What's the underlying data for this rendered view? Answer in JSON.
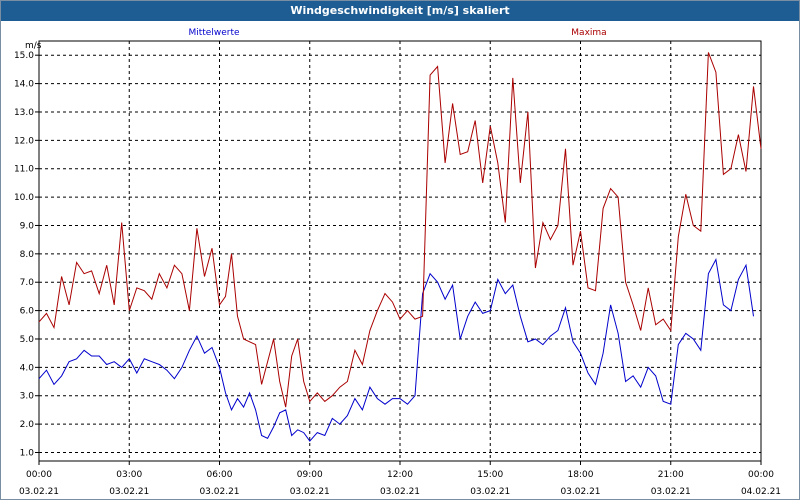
{
  "window": {
    "title": "Windgeschwindigkeit [m/s] skaliert"
  },
  "chart_data": {
    "type": "line",
    "title": "Windgeschwindigkeit [m/s] skaliert",
    "ylabel": "m/s",
    "ylim": [
      0.7,
      15.5
    ],
    "y_ticks": [
      "1.0",
      "2.0",
      "3.0",
      "4.0",
      "5.0",
      "6.0",
      "7.0",
      "8.0",
      "9.0",
      "10.0",
      "11.0",
      "12.0",
      "13.0",
      "14.0",
      "15.0"
    ],
    "xlim": [
      0,
      24
    ],
    "x_ticks": [
      {
        "time": "00:00",
        "date": "03.02.21"
      },
      {
        "time": "03:00",
        "date": "03.02.21"
      },
      {
        "time": "06:00",
        "date": "03.02.21"
      },
      {
        "time": "09:00",
        "date": "03.02.21"
      },
      {
        "time": "12:00",
        "date": "03.02.21"
      },
      {
        "time": "15:00",
        "date": "03.02.21"
      },
      {
        "time": "18:00",
        "date": "03.02.21"
      },
      {
        "time": "21:00",
        "date": "03.02.21"
      },
      {
        "time": "00:00",
        "date": "04.02.21"
      }
    ],
    "grid": true,
    "series": [
      {
        "name": "Mittelwerte",
        "color": "#0000cc",
        "points": [
          [
            0,
            3.6
          ],
          [
            0.25,
            3.9
          ],
          [
            0.5,
            3.4
          ],
          [
            0.75,
            3.7
          ],
          [
            1,
            4.2
          ],
          [
            1.25,
            4.3
          ],
          [
            1.5,
            4.6
          ],
          [
            1.75,
            4.4
          ],
          [
            2,
            4.4
          ],
          [
            2.25,
            4.1
          ],
          [
            2.5,
            4.2
          ],
          [
            2.75,
            4.0
          ],
          [
            3,
            4.3
          ],
          [
            3.25,
            3.8
          ],
          [
            3.5,
            4.3
          ],
          [
            3.75,
            4.2
          ],
          [
            4,
            4.1
          ],
          [
            4.25,
            3.9
          ],
          [
            4.5,
            3.6
          ],
          [
            4.75,
            4.0
          ],
          [
            5,
            4.6
          ],
          [
            5.25,
            5.1
          ],
          [
            5.5,
            4.5
          ],
          [
            5.75,
            4.7
          ],
          [
            6,
            4.0
          ],
          [
            6.2,
            3.1
          ],
          [
            6.4,
            2.5
          ],
          [
            6.6,
            2.9
          ],
          [
            6.8,
            2.6
          ],
          [
            7,
            3.1
          ],
          [
            7.2,
            2.5
          ],
          [
            7.4,
            1.6
          ],
          [
            7.6,
            1.5
          ],
          [
            7.8,
            1.9
          ],
          [
            8,
            2.4
          ],
          [
            8.2,
            2.5
          ],
          [
            8.4,
            1.6
          ],
          [
            8.6,
            1.8
          ],
          [
            8.8,
            1.7
          ],
          [
            9,
            1.4
          ],
          [
            9.25,
            1.7
          ],
          [
            9.5,
            1.6
          ],
          [
            9.75,
            2.2
          ],
          [
            10,
            2.0
          ],
          [
            10.25,
            2.3
          ],
          [
            10.5,
            2.9
          ],
          [
            10.75,
            2.5
          ],
          [
            11,
            3.3
          ],
          [
            11.25,
            2.9
          ],
          [
            11.5,
            2.7
          ],
          [
            11.75,
            2.9
          ],
          [
            12,
            2.9
          ],
          [
            12.25,
            2.7
          ],
          [
            12.5,
            3.0
          ],
          [
            12.75,
            6.6
          ],
          [
            13,
            7.3
          ],
          [
            13.25,
            7.0
          ],
          [
            13.5,
            6.4
          ],
          [
            13.75,
            6.9
          ],
          [
            14,
            5.0
          ],
          [
            14.25,
            5.8
          ],
          [
            14.5,
            6.3
          ],
          [
            14.75,
            5.9
          ],
          [
            15,
            6.0
          ],
          [
            15.25,
            7.1
          ],
          [
            15.5,
            6.6
          ],
          [
            15.75,
            6.9
          ],
          [
            16,
            5.8
          ],
          [
            16.25,
            4.9
          ],
          [
            16.5,
            5.0
          ],
          [
            16.75,
            4.8
          ],
          [
            17,
            5.1
          ],
          [
            17.25,
            5.3
          ],
          [
            17.5,
            6.1
          ],
          [
            17.75,
            4.9
          ],
          [
            18,
            4.5
          ],
          [
            18.25,
            3.8
          ],
          [
            18.5,
            3.4
          ],
          [
            18.75,
            4.5
          ],
          [
            19,
            6.2
          ],
          [
            19.25,
            5.2
          ],
          [
            19.5,
            3.5
          ],
          [
            19.75,
            3.7
          ],
          [
            20,
            3.3
          ],
          [
            20.25,
            4.0
          ],
          [
            20.5,
            3.7
          ],
          [
            20.75,
            2.8
          ],
          [
            21,
            2.7
          ],
          [
            21.25,
            4.8
          ],
          [
            21.5,
            5.2
          ],
          [
            21.75,
            5.0
          ],
          [
            22,
            4.6
          ],
          [
            22.25,
            7.3
          ],
          [
            22.5,
            7.8
          ],
          [
            22.75,
            6.2
          ],
          [
            23,
            6.0
          ],
          [
            23.25,
            7.1
          ],
          [
            23.5,
            7.6
          ],
          [
            23.75,
            5.8
          ]
        ]
      },
      {
        "name": "Maxima",
        "color": "#aa0000",
        "points": [
          [
            0,
            5.6
          ],
          [
            0.25,
            5.9
          ],
          [
            0.5,
            5.4
          ],
          [
            0.75,
            7.2
          ],
          [
            1,
            6.2
          ],
          [
            1.25,
            7.7
          ],
          [
            1.5,
            7.3
          ],
          [
            1.75,
            7.4
          ],
          [
            2,
            6.6
          ],
          [
            2.25,
            7.6
          ],
          [
            2.5,
            6.2
          ],
          [
            2.75,
            9.1
          ],
          [
            3,
            6.0
          ],
          [
            3.25,
            6.8
          ],
          [
            3.5,
            6.7
          ],
          [
            3.75,
            6.4
          ],
          [
            4,
            7.3
          ],
          [
            4.25,
            6.8
          ],
          [
            4.5,
            7.6
          ],
          [
            4.75,
            7.3
          ],
          [
            5,
            6.0
          ],
          [
            5.25,
            8.9
          ],
          [
            5.5,
            7.2
          ],
          [
            5.75,
            8.2
          ],
          [
            6,
            6.2
          ],
          [
            6.2,
            6.5
          ],
          [
            6.4,
            8.0
          ],
          [
            6.6,
            5.8
          ],
          [
            6.8,
            5.0
          ],
          [
            7,
            4.9
          ],
          [
            7.2,
            4.8
          ],
          [
            7.4,
            3.4
          ],
          [
            7.6,
            4.2
          ],
          [
            7.8,
            5.0
          ],
          [
            8,
            3.5
          ],
          [
            8.2,
            2.6
          ],
          [
            8.4,
            4.4
          ],
          [
            8.6,
            5.0
          ],
          [
            8.8,
            3.5
          ],
          [
            9,
            2.8
          ],
          [
            9.25,
            3.1
          ],
          [
            9.5,
            2.8
          ],
          [
            9.75,
            3.0
          ],
          [
            10,
            3.3
          ],
          [
            10.25,
            3.5
          ],
          [
            10.5,
            4.6
          ],
          [
            10.75,
            4.1
          ],
          [
            11,
            5.3
          ],
          [
            11.25,
            6.0
          ],
          [
            11.5,
            6.6
          ],
          [
            11.75,
            6.3
          ],
          [
            12,
            5.7
          ],
          [
            12.25,
            6.0
          ],
          [
            12.5,
            5.7
          ],
          [
            12.75,
            5.8
          ],
          [
            13,
            14.3
          ],
          [
            13.25,
            14.6
          ],
          [
            13.5,
            11.2
          ],
          [
            13.75,
            13.3
          ],
          [
            14,
            11.5
          ],
          [
            14.25,
            11.6
          ],
          [
            14.5,
            12.7
          ],
          [
            14.75,
            10.5
          ],
          [
            15,
            12.5
          ],
          [
            15.25,
            11.2
          ],
          [
            15.5,
            9.1
          ],
          [
            15.75,
            14.2
          ],
          [
            16,
            10.5
          ],
          [
            16.25,
            13.0
          ],
          [
            16.5,
            7.5
          ],
          [
            16.75,
            9.1
          ],
          [
            17,
            8.5
          ],
          [
            17.25,
            9.0
          ],
          [
            17.5,
            11.7
          ],
          [
            17.75,
            7.6
          ],
          [
            18,
            8.8
          ],
          [
            18.25,
            6.8
          ],
          [
            18.5,
            6.7
          ],
          [
            18.75,
            9.6
          ],
          [
            19,
            10.3
          ],
          [
            19.25,
            10.0
          ],
          [
            19.5,
            7.0
          ],
          [
            19.75,
            6.2
          ],
          [
            20,
            5.3
          ],
          [
            20.25,
            6.8
          ],
          [
            20.5,
            5.5
          ],
          [
            20.75,
            5.7
          ],
          [
            21,
            5.3
          ],
          [
            21.25,
            8.6
          ],
          [
            21.5,
            10.1
          ],
          [
            21.75,
            9.0
          ],
          [
            22,
            8.8
          ],
          [
            22.25,
            15.1
          ],
          [
            22.5,
            14.4
          ],
          [
            22.75,
            10.8
          ],
          [
            23,
            11.0
          ],
          [
            23.25,
            12.2
          ],
          [
            23.5,
            10.9
          ],
          [
            23.75,
            13.9
          ],
          [
            24,
            11.7
          ]
        ]
      }
    ]
  }
}
